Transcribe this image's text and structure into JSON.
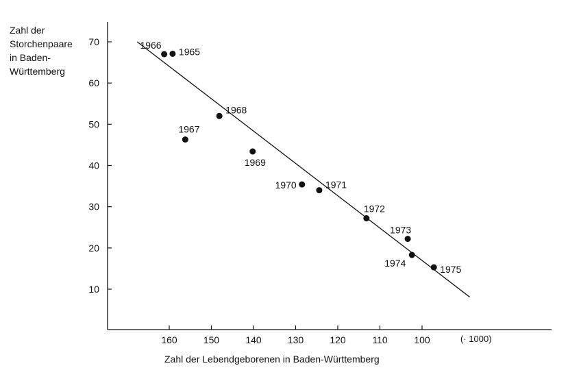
{
  "chart_data": {
    "type": "scatter",
    "title": "",
    "ylabel_lines": [
      "Zahl der",
      "Storchenpaare",
      "in Baden-",
      "Württemberg"
    ],
    "xlabel": "Zahl der Lebendgeborenen in Baden-Württemberg",
    "x_unit": "(· 1000)",
    "x_reversed": true,
    "xlim": [
      168,
      82
    ],
    "ylim": [
      0,
      75
    ],
    "x_ticks": [
      160,
      150,
      140,
      130,
      120,
      110,
      100
    ],
    "x_tick_labels": [
      "160",
      "150",
      "140",
      "130",
      "120",
      "110",
      "100"
    ],
    "y_ticks": [
      10,
      20,
      30,
      40,
      50,
      60,
      70
    ],
    "y_tick_labels": [
      "10",
      "20",
      "30",
      "40",
      "50",
      "60",
      "70"
    ],
    "grid": false,
    "points": [
      {
        "label": "1965",
        "x": 159.2,
        "y": 67.1
      },
      {
        "label": "1966",
        "x": 161.2,
        "y": 67.0
      },
      {
        "label": "1967",
        "x": 156.2,
        "y": 46.3
      },
      {
        "label": "1968",
        "x": 148.1,
        "y": 52.0
      },
      {
        "label": "1969",
        "x": 140.2,
        "y": 43.4
      },
      {
        "label": "1970",
        "x": 128.5,
        "y": 35.4
      },
      {
        "label": "1971",
        "x": 124.4,
        "y": 34.0
      },
      {
        "label": "1972",
        "x": 113.2,
        "y": 27.2
      },
      {
        "label": "1973",
        "x": 103.4,
        "y": 22.2
      },
      {
        "label": "1974",
        "x": 102.4,
        "y": 18.3
      },
      {
        "label": "1975",
        "x": 97.2,
        "y": 15.3
      }
    ],
    "regression_line": {
      "x1": 167.6,
      "y1": 70.0,
      "x2": 88.7,
      "y2": 8.1
    }
  }
}
